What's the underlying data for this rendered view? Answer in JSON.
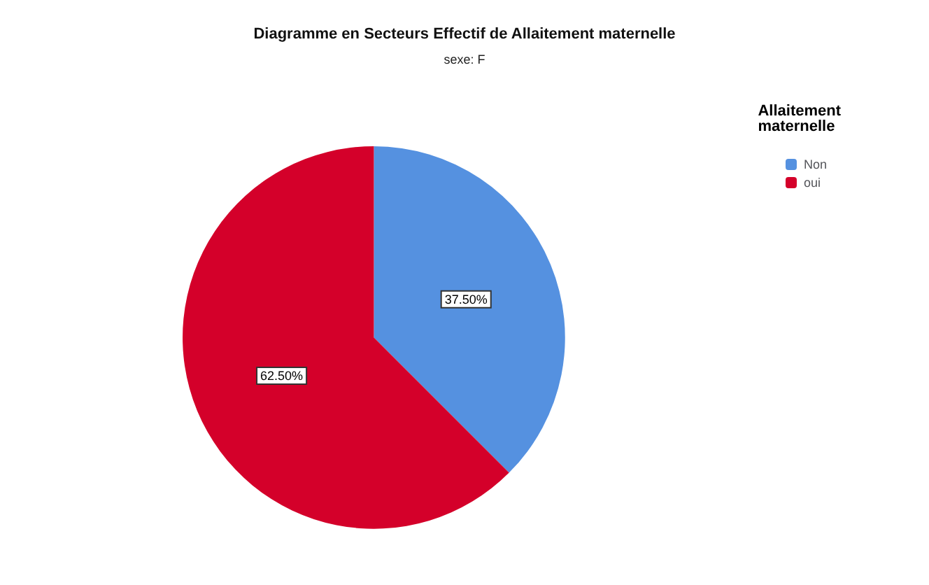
{
  "chart_data": {
    "type": "pie",
    "title": "Diagramme en Secteurs Effectif de Allaitement maternelle",
    "subtitle": "sexe: F",
    "legend_title": "Allaitement maternelle",
    "categories": [
      "Non",
      "oui"
    ],
    "values": [
      37.5,
      62.5
    ],
    "colors": [
      "#5591e0",
      "#d4002a"
    ],
    "value_labels": [
      "37.50%",
      "62.50%"
    ],
    "legend": "top right"
  }
}
